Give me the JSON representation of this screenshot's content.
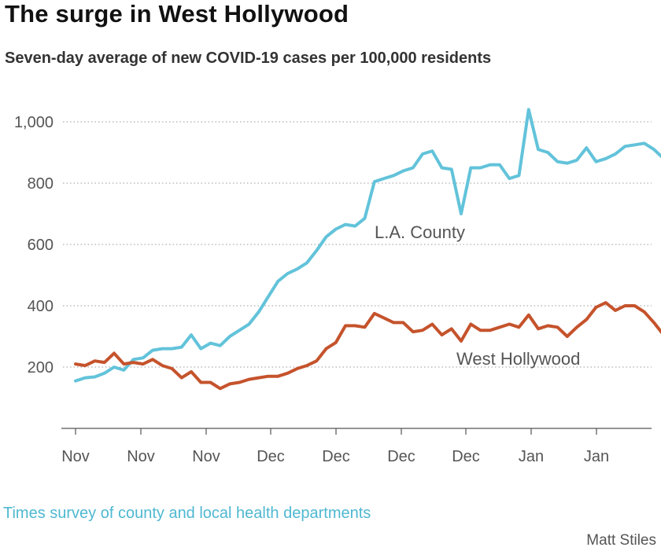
{
  "header": {
    "title": "The surge in West Hollywood",
    "subtitle": "Seven-day average of new COVID-19 cases per 100,000 residents"
  },
  "footer": {
    "source": "Times survey of county and local health departments",
    "credit": "Matt Stiles"
  },
  "colors": {
    "la_county": "#62c3da",
    "west_hollywood": "#c5532c",
    "grid": "#999999",
    "axis": "#555555"
  },
  "chart_data": {
    "type": "line",
    "title": "The surge in West Hollywood",
    "subtitle": "Seven-day average of new COVID-19 cases per 100,000 residents",
    "xlabel": "",
    "ylabel": "",
    "ylim": [
      0,
      1050
    ],
    "yticks": [
      200,
      400,
      600,
      800,
      1000
    ],
    "ytick_labels": [
      "200",
      "400",
      "600",
      "800",
      "1,000"
    ],
    "xtick_labels": [
      "Nov",
      "Nov",
      "Nov",
      "Dec",
      "Dec",
      "Dec",
      "Dec",
      "Jan",
      "Jan"
    ],
    "grid": true,
    "legend": "inline labels",
    "series": [
      {
        "name": "L.A. County",
        "values": [
          155,
          165,
          168,
          180,
          200,
          190,
          225,
          230,
          255,
          260,
          260,
          265,
          305,
          260,
          278,
          270,
          300,
          320,
          340,
          380,
          430,
          480,
          505,
          520,
          540,
          580,
          625,
          650,
          665,
          660,
          685,
          805,
          815,
          825,
          840,
          850,
          895,
          905,
          850,
          845,
          700,
          850,
          850,
          860,
          860,
          815,
          825,
          1040,
          910,
          900,
          870,
          865,
          875,
          915,
          870,
          880,
          895,
          920,
          925,
          930,
          910,
          880
        ]
      },
      {
        "name": "West Hollywood",
        "values": [
          210,
          205,
          220,
          215,
          245,
          210,
          215,
          210,
          225,
          205,
          195,
          165,
          185,
          150,
          150,
          130,
          145,
          150,
          160,
          165,
          170,
          170,
          180,
          195,
          205,
          220,
          260,
          280,
          335,
          335,
          330,
          375,
          360,
          345,
          345,
          315,
          320,
          340,
          305,
          325,
          285,
          340,
          320,
          320,
          330,
          340,
          330,
          370,
          325,
          335,
          330,
          300,
          330,
          355,
          395,
          410,
          385,
          400,
          400,
          380,
          345,
          305
        ]
      }
    ]
  }
}
